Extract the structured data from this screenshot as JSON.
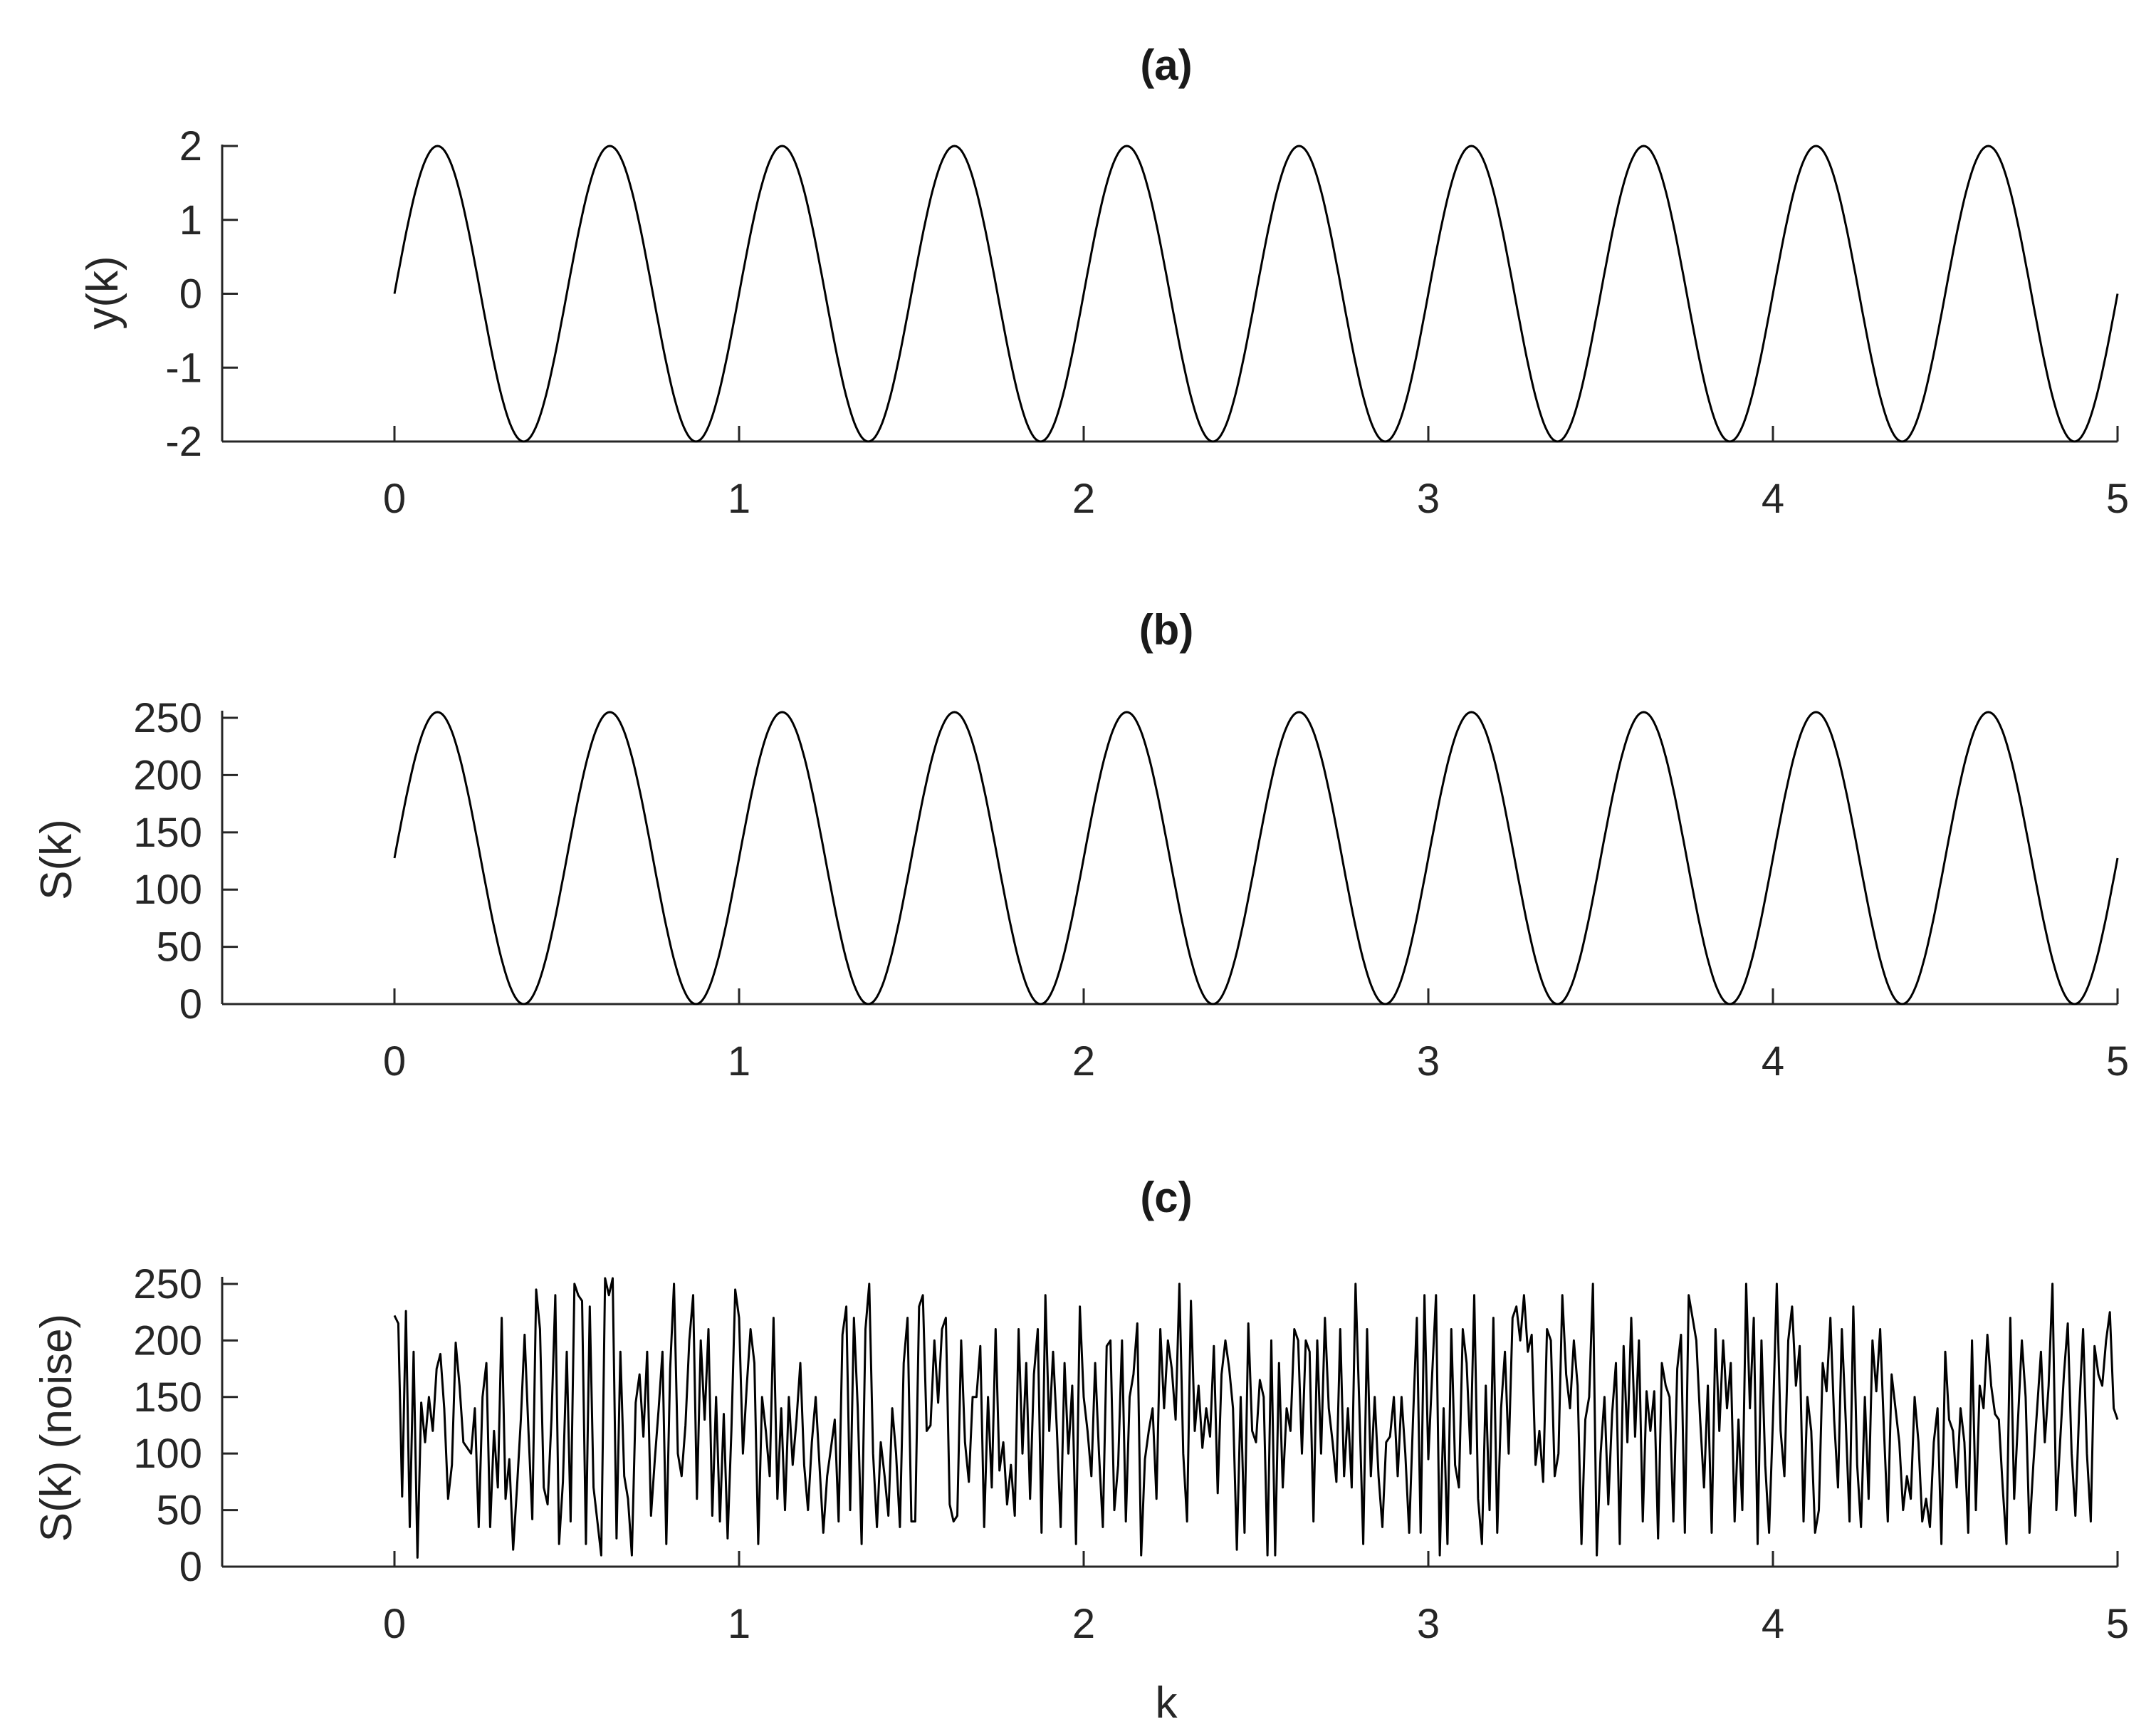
{
  "chart_data": [
    {
      "type": "line",
      "title": "(a)",
      "xlabel": "",
      "ylabel": "y(k)",
      "xlim": [
        -0.5,
        5
      ],
      "ylim": [
        -2,
        2
      ],
      "xticks": [
        "0",
        "1",
        "2",
        "3",
        "4",
        "5"
      ],
      "yticks": [
        "-2",
        "-1",
        "0",
        "1",
        "2"
      ],
      "grid": false,
      "series": [
        {
          "function": "y(k) = 2·sin(4πk)",
          "k_range": [
            0,
            5
          ],
          "amplitude": 2,
          "frequency": 2,
          "offset": 0,
          "samples": 1000
        }
      ]
    },
    {
      "type": "line",
      "title": "(b)",
      "xlabel": "",
      "ylabel": "S(k)",
      "xlim": [
        -0.5,
        5
      ],
      "ylim": [
        0,
        255
      ],
      "xticks": [
        "0",
        "1",
        "2",
        "3",
        "4",
        "5"
      ],
      "yticks": [
        "0",
        "50",
        "100",
        "150",
        "200",
        "250"
      ],
      "grid": false,
      "series": [
        {
          "function": "S(k) = 127.5 + 127.5·sin(4πk)",
          "k_range": [
            0,
            5
          ],
          "amplitude": 127.5,
          "frequency": 2,
          "offset": 127.5,
          "samples": 1000
        }
      ]
    },
    {
      "type": "line",
      "title": "(c)",
      "xlabel": "k",
      "ylabel": "S(k)  (noise)",
      "xlim": [
        -0.5,
        5
      ],
      "ylim": [
        0,
        255
      ],
      "xticks": [
        "0",
        "1",
        "2",
        "3",
        "4",
        "5"
      ],
      "yticks": [
        "0",
        "50",
        "100",
        "150",
        "200",
        "250"
      ],
      "grid": false,
      "series": [
        {
          "k_range": [
            0,
            5
          ],
          "values": [
            222,
            215,
            62,
            226,
            35,
            190,
            8,
            145,
            110,
            150,
            120,
            175,
            188,
            140,
            60,
            90,
            198,
            160,
            110,
            105,
            100,
            140,
            35,
            150,
            180,
            35,
            120,
            70,
            220,
            60,
            95,
            15,
            70,
            130,
            205,
            120,
            42,
            245,
            210,
            70,
            55,
            130,
            240,
            20,
            75,
            190,
            40,
            250,
            240,
            235,
            20,
            230,
            70,
            40,
            10,
            260,
            240,
            255,
            25,
            190,
            80,
            60,
            10,
            145,
            170,
            115,
            190,
            45,
            95,
            140,
            190,
            20,
            175,
            250,
            100,
            80,
            125,
            200,
            240,
            60,
            200,
            130,
            210,
            45,
            150,
            40,
            135,
            25,
            120,
            245,
            220,
            100,
            160,
            210,
            180,
            20,
            150,
            120,
            80,
            220,
            60,
            140,
            50,
            150,
            90,
            130,
            180,
            90,
            50,
            110,
            150,
            90,
            30,
            80,
            105,
            130,
            40,
            205,
            230,
            50,
            220,
            140,
            20,
            210,
            250,
            100,
            35,
            110,
            80,
            45,
            140,
            100,
            35,
            180,
            220,
            40,
            40,
            230,
            240,
            120,
            125,
            200,
            145,
            210,
            220,
            55,
            40,
            45,
            200,
            110,
            75,
            150,
            150,
            195,
            35,
            150,
            70,
            210,
            85,
            110,
            55,
            90,
            45,
            210,
            100,
            180,
            60,
            170,
            210,
            30,
            240,
            120,
            190,
            120,
            35,
            180,
            100,
            160,
            20,
            230,
            150,
            120,
            80,
            180,
            100,
            35,
            195,
            200,
            50,
            90,
            200,
            40,
            150,
            170,
            215,
            10,
            95,
            120,
            140,
            60,
            210,
            140,
            200,
            175,
            130,
            250,
            100,
            40,
            235,
            120,
            160,
            105,
            140,
            115,
            195,
            65,
            170,
            200,
            175,
            140,
            15,
            150,
            30,
            215,
            120,
            110,
            165,
            150,
            10,
            200,
            10,
            180,
            70,
            140,
            120,
            210,
            200,
            100,
            200,
            190,
            40,
            200,
            100,
            220,
            140,
            110,
            75,
            210,
            80,
            140,
            70,
            250,
            140,
            20,
            210,
            80,
            150,
            80,
            35,
            110,
            115,
            150,
            80,
            150,
            100,
            30,
            130,
            220,
            30,
            240,
            95,
            170,
            240,
            10,
            140,
            20,
            210,
            90,
            70,
            210,
            180,
            100,
            240,
            60,
            20,
            160,
            50,
            220,
            30,
            140,
            190,
            100,
            220,
            230,
            200,
            240,
            190,
            205,
            90,
            120,
            75,
            210,
            200,
            80,
            100,
            240,
            170,
            140,
            200,
            160,
            20,
            130,
            150,
            250,
            10,
            100,
            150,
            55,
            135,
            180,
            20,
            195,
            110,
            220,
            115,
            200,
            40,
            155,
            120,
            155,
            25,
            180,
            160,
            150,
            40,
            175,
            205,
            30,
            240,
            220,
            200,
            130,
            70,
            160,
            30,
            210,
            120,
            200,
            140,
            180,
            40,
            130,
            50,
            250,
            140,
            220,
            20,
            200,
            90,
            30,
            130,
            250,
            120,
            80,
            200,
            230,
            160,
            195,
            40,
            150,
            120,
            30,
            50,
            180,
            155,
            220,
            130,
            70,
            210,
            130,
            40,
            230,
            90,
            35,
            150,
            60,
            200,
            155,
            210,
            120,
            40,
            170,
            140,
            110,
            50,
            80,
            60,
            150,
            110,
            40,
            60,
            35,
            110,
            140,
            20,
            190,
            130,
            120,
            70,
            140,
            110,
            30,
            200,
            50,
            160,
            140,
            205,
            160,
            135,
            130,
            70,
            20,
            220,
            60,
            130,
            200,
            150,
            30,
            90,
            140,
            190,
            110,
            160,
            250,
            50,
            110,
            170,
            215,
            100,
            45,
            140,
            210,
            100,
            40,
            195,
            170,
            160,
            200,
            225,
            140,
            130
          ]
        }
      ]
    }
  ]
}
